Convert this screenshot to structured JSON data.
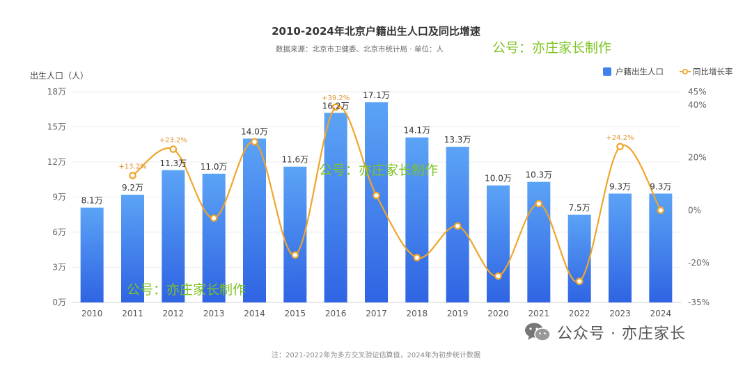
{
  "title": "2010-2024年北京户籍出生人口及同比增速",
  "subtitle": "数据来源：北京市卫健委、北京市统计局 · 单位：人",
  "watermarks": [
    "公号：亦庄家长制作",
    "公号：亦庄家长制作",
    "公号：亦庄家长制作"
  ],
  "brand": {
    "icon": "wechat-icon",
    "text": "公众号 · 亦庄家长"
  },
  "footnote": "注：2021-2022年为多方交叉验证估算值，2024年为初步统计数据",
  "colors": {
    "bar_top": "#5ba3f6",
    "bar_bottom": "#2f64e3",
    "line": "#f0a52b",
    "watermark": "#7ec322"
  },
  "chart_data": {
    "type": "bar",
    "categories": [
      "2010",
      "2011",
      "2012",
      "2013",
      "2014",
      "2015",
      "2016",
      "2017",
      "2018",
      "2019",
      "2020",
      "2021",
      "2022",
      "2023",
      "2024"
    ],
    "series": [
      {
        "name": "户籍出生人口",
        "type": "bar",
        "axis": "left",
        "values": [
          8.1,
          9.2,
          11.3,
          11.0,
          14.0,
          11.6,
          16.2,
          17.1,
          14.1,
          13.3,
          10.0,
          10.3,
          7.5,
          9.3,
          9.3
        ],
        "labels": [
          "8.1万",
          "9.2万",
          "11.3万",
          "11.0万",
          "14.0万",
          "11.6万",
          "16.2万",
          "17.1万",
          "14.1万",
          "13.3万",
          "10.0万",
          "10.3万",
          "7.5万",
          "9.3万",
          "9.3万"
        ]
      },
      {
        "name": "同比增长率",
        "type": "line",
        "axis": "right",
        "values": [
          null,
          13.2,
          23.2,
          -3,
          26,
          -17,
          39.2,
          5.6,
          -18,
          -6,
          -25,
          2.5,
          -27,
          24.2,
          0
        ],
        "labels": [
          "",
          "+13.2%",
          "+23.2%",
          "",
          "",
          "",
          "+39.2%",
          "",
          "",
          "",
          "",
          "",
          "",
          "+24.2%",
          ""
        ]
      }
    ],
    "ylabel": "出生人口（人）",
    "ylim": [
      0,
      18
    ],
    "y_ticks": [
      "0万",
      "3万",
      "6万",
      "9万",
      "12万",
      "15万",
      "18万"
    ],
    "y2lim": [
      -35,
      45
    ],
    "y2_ticks": [
      {
        "v": 45,
        "label": "45%"
      },
      {
        "v": 40,
        "label": "40%"
      },
      {
        "v": 20,
        "label": "20%"
      },
      {
        "v": 0,
        "label": "0%"
      },
      {
        "v": -20,
        "label": "-20%"
      },
      {
        "v": -35,
        "label": "-35%"
      }
    ],
    "legend": "top-right",
    "grid": true
  }
}
